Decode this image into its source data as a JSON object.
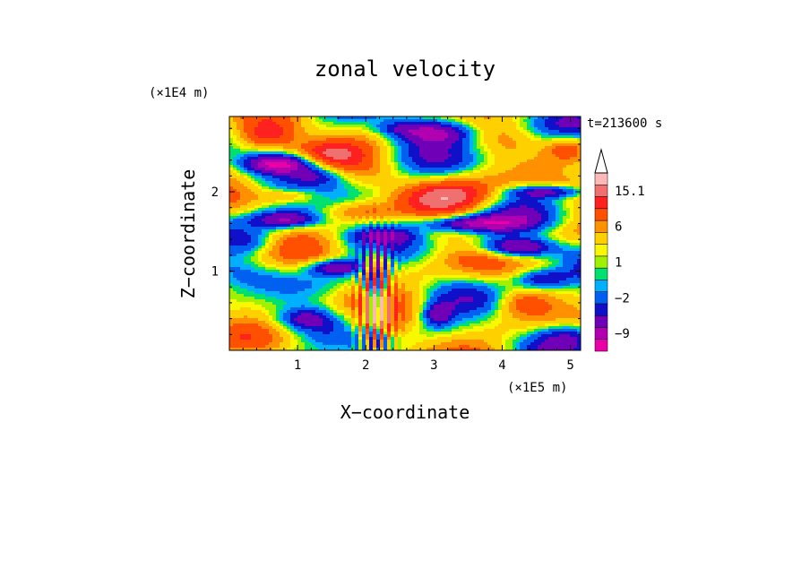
{
  "chart_data": {
    "type": "heatmap",
    "title": "zonal velocity",
    "xlabel": "X−coordinate",
    "ylabel": "Z−coordinate",
    "x_scale_label": "(×1E5 m)",
    "y_scale_label": "(×1E4 m)",
    "time_label": "t=213600 s",
    "xlim": [
      0,
      5.15
    ],
    "ylim": [
      0,
      2.95
    ],
    "x_ticks": [
      1,
      2,
      3,
      4,
      5
    ],
    "y_ticks": [
      1,
      2
    ],
    "x_tick_labels": [
      "1",
      "2",
      "3",
      "4",
      "5"
    ],
    "y_tick_labels": [
      "1",
      "2"
    ],
    "colorbar": {
      "levels": [
        -12,
        -9,
        -6,
        -4,
        -2,
        -1,
        0,
        1,
        2,
        4,
        6,
        9,
        12,
        15.1
      ],
      "colors": [
        "#e800a8",
        "#b000b0",
        "#7000b8",
        "#1010c8",
        "#0060f0",
        "#00b0ff",
        "#00e070",
        "#a0f000",
        "#f8f800",
        "#ffd000",
        "#ff9000",
        "#ff5000",
        "#ff2020",
        "#f07070",
        "#ffb8b8"
      ],
      "tick_values": [
        15.1,
        6,
        1,
        -2,
        -9
      ],
      "tick_labels": [
        "15.1",
        "6",
        "1",
        "−2",
        "−9"
      ],
      "extend": "max"
    }
  }
}
